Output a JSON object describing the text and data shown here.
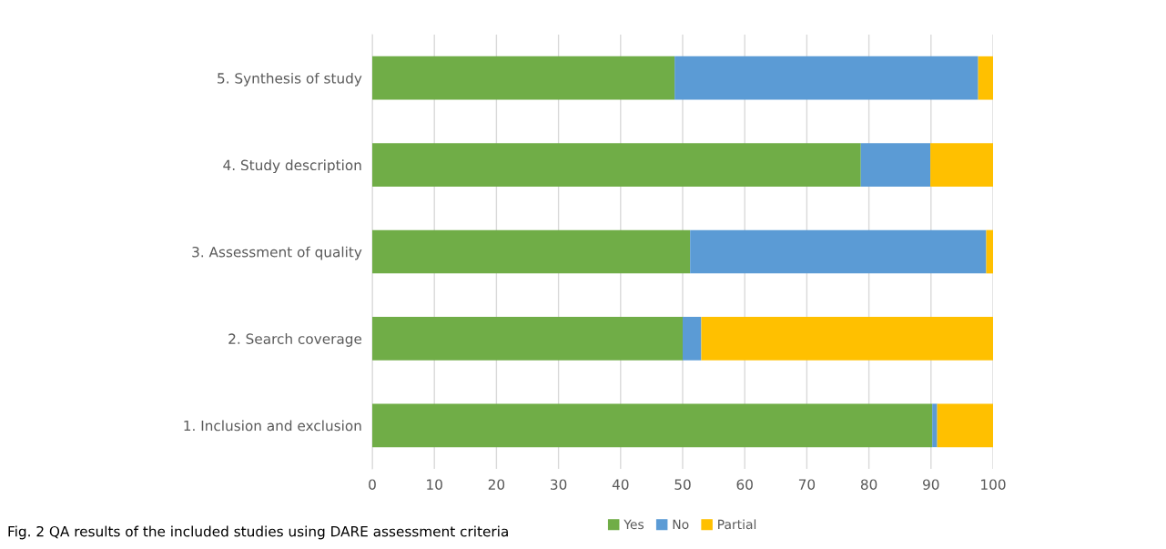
{
  "chart_data": {
    "type": "bar",
    "orientation": "horizontal",
    "stacked": true,
    "categories": [
      "5. Synthesis of study",
      "4. Study description",
      "3. Assessment of quality",
      "2. Search coverage",
      "1. Inclusion and exclusion"
    ],
    "series": [
      {
        "name": "Yes",
        "color": "#70ad47",
        "values": [
          48.7,
          78.7,
          51.2,
          50.0,
          90.2
        ]
      },
      {
        "name": "No",
        "color": "#5b9bd5",
        "values": [
          48.9,
          11.2,
          47.7,
          3.0,
          0.8
        ]
      },
      {
        "name": "Partial",
        "color": "#ffc000",
        "values": [
          2.4,
          10.1,
          1.1,
          47.0,
          9.0
        ]
      }
    ],
    "xlim": [
      0,
      100
    ],
    "xticks": [
      0,
      10,
      20,
      30,
      40,
      50,
      60,
      70,
      80,
      90,
      100
    ],
    "grid": "x",
    "legend": "bottom",
    "annotations": [
      "Fig. 2 QA results of the included studies using DARE assessment criteria"
    ]
  }
}
